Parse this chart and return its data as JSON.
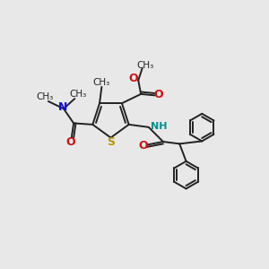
{
  "bg_color": "#e8e8e8",
  "bond_color": "#222222",
  "bond_width": 1.4,
  "S_color": "#b8960a",
  "N_color": "#1010dd",
  "O_color": "#cc1111",
  "NH_color": "#009090",
  "figsize": [
    3.0,
    3.0
  ],
  "dpi": 100,
  "xlim": [
    0,
    10
  ],
  "ylim": [
    0,
    10
  ]
}
